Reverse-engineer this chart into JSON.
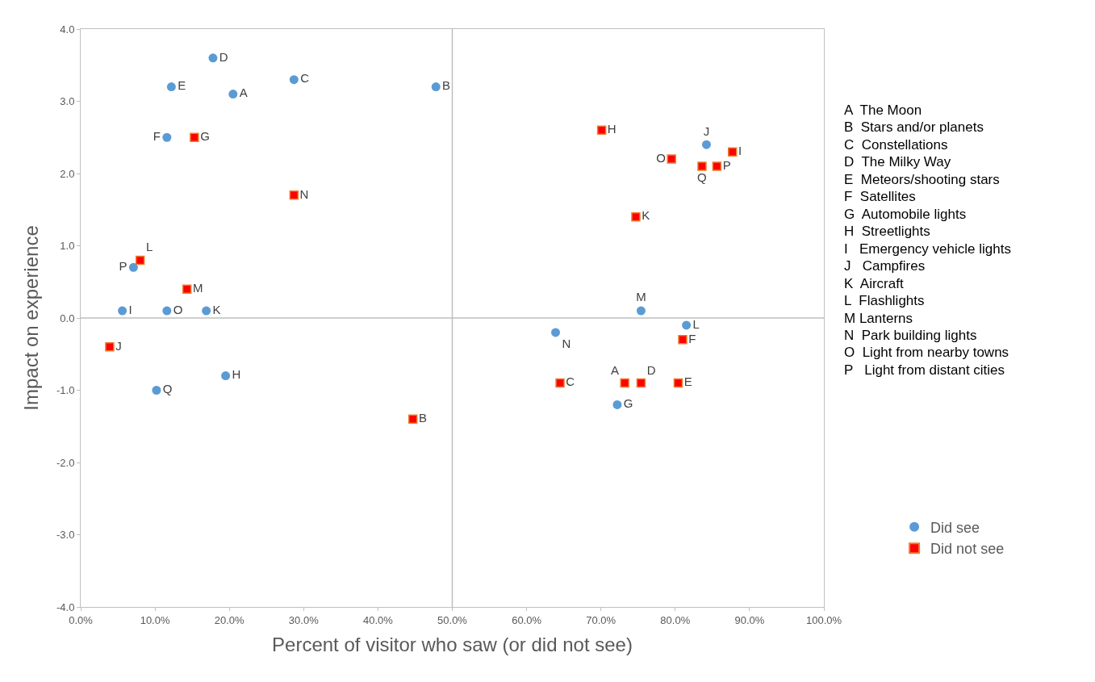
{
  "chart_data": {
    "type": "scatter",
    "xlabel": "Percent of visitor who saw (or did not see)",
    "ylabel": "Impact on experience",
    "series": [
      {
        "name": "Did see",
        "color": "#5b9bd5",
        "marker": "circle",
        "x": [
          20.5,
          47.8,
          28.7,
          17.8,
          12.2,
          11.6,
          72.2,
          19.5,
          5.6,
          84.2,
          16.9,
          81.5,
          75.4,
          63.9,
          11.6,
          7.1,
          10.2
        ],
        "values": [
          3.1,
          3.2,
          3.3,
          3.6,
          3.2,
          2.5,
          -1.2,
          -0.8,
          0.1,
          2.4,
          0.1,
          -0.1,
          0.1,
          -0.2,
          0.1,
          0.7,
          -1.0
        ],
        "value_labels": [
          "A",
          "B",
          "C",
          "D",
          "E",
          "F",
          "G",
          "H",
          "I",
          "J",
          "K",
          "L",
          "M",
          "N",
          "O",
          "P",
          "Q"
        ]
      },
      {
        "name": "Did not see",
        "color": "#ff0000",
        "marker": "square",
        "x": [
          73.2,
          44.7,
          64.5,
          75.4,
          80.4,
          81.0,
          15.3,
          70.1,
          87.7,
          3.9,
          74.7,
          8.0,
          14.3,
          28.7,
          79.5,
          85.6,
          83.6
        ],
        "values": [
          -0.9,
          -1.4,
          -0.9,
          -0.9,
          -0.9,
          -0.3,
          2.5,
          2.6,
          2.3,
          -0.4,
          1.4,
          0.8,
          0.4,
          1.7,
          2.2,
          2.1,
          2.1
        ],
        "value_labels": [
          "A",
          "B",
          "C",
          "D",
          "E",
          "F",
          "G",
          "H",
          "I",
          "J",
          "K",
          "L",
          "M",
          "N",
          "O",
          "P",
          "Q"
        ]
      }
    ],
    "xlim": [
      0,
      100
    ],
    "xticks": [
      {
        "value": 0,
        "label": "0.0%"
      },
      {
        "value": 10,
        "label": "10.0%"
      },
      {
        "value": 20,
        "label": "20.0%"
      },
      {
        "value": 30,
        "label": "30.0%"
      },
      {
        "value": 40,
        "label": "40.0%"
      },
      {
        "value": 50,
        "label": "50.0%"
      },
      {
        "value": 60,
        "label": "60.0%"
      },
      {
        "value": 70,
        "label": "70.0%"
      },
      {
        "value": 80,
        "label": "80.0%"
      },
      {
        "value": 90,
        "label": "90.0%"
      },
      {
        "value": 100,
        "label": "100.0%"
      }
    ],
    "ylim": [
      -4,
      4
    ],
    "yticks": [
      {
        "value": -4,
        "label": "-4.0"
      },
      {
        "value": -3,
        "label": "-3.0"
      },
      {
        "value": -2,
        "label": "-2.0"
      },
      {
        "value": -1,
        "label": "-1.0"
      },
      {
        "value": 0,
        "label": "0.0"
      },
      {
        "value": 1,
        "label": "1.0"
      },
      {
        "value": 2,
        "label": "2.0"
      },
      {
        "value": 3,
        "label": "3.0"
      },
      {
        "value": 4,
        "label": "4.0"
      }
    ],
    "ref_lines": [
      {
        "axis": "x",
        "value": 50,
        "color": "#bfbfbf"
      },
      {
        "axis": "y",
        "value": 0,
        "color": "#bfbfbf"
      }
    ],
    "grid": false,
    "legend": "bottom right",
    "annotations": [
      "A  The Moon",
      "B  Stars and/or planets",
      "C  Constellations",
      "D  The Milky Way",
      "E  Meteors/shooting stars",
      "F  Satellites",
      "G  Automobile lights",
      "H  Streetlights",
      "I   Emergency vehicle lights",
      "J   Campfires",
      "K  Aircraft",
      "L  Flashlights",
      "M Lanterns",
      "N  Park building lights",
      "O  Light from nearby towns",
      "P   Light from distant cities"
    ]
  }
}
